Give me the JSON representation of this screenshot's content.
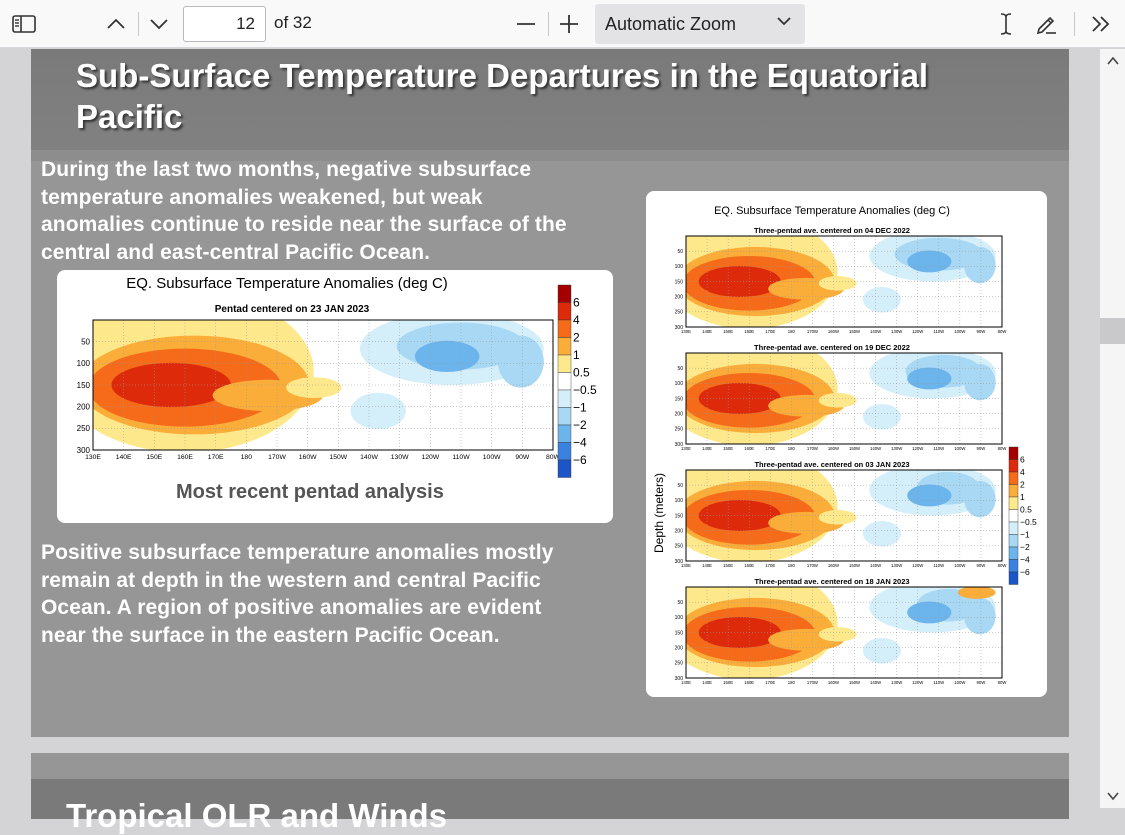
{
  "toolbar": {
    "page_number": "12",
    "page_count": "of 32",
    "zoom_value": "Automatic Zoom"
  },
  "slide": {
    "title": "Sub-Surface Temperature Departures in the Equatorial Pacific",
    "title_line1": "Sub-Surface Temperature Departures in the Equatorial",
    "title_line2": "Pacific",
    "para1": [
      "During the last two months, negative subsurface",
      "temperature anomalies weakened, but weak",
      "anomalies continue to reside near the surface of the",
      "central and east-central Pacific Ocean."
    ],
    "para2": [
      "Positive subsurface temperature anomalies mostly",
      "remain at depth in the western and central Pacific",
      "Ocean.  A region of positive anomalies are evident",
      "near the surface in the eastern Pacific Ocean."
    ],
    "caption": "Most recent pentad analysis"
  },
  "main_chart": {
    "title": "EQ. Subsurface Temperature Anomalies (deg C)",
    "subtitle": "Pentad centered on 23 JAN 2023",
    "y_ticks": [
      "50",
      "100",
      "150",
      "200",
      "250",
      "300"
    ],
    "x_ticks": [
      "130E",
      "140E",
      "150E",
      "160E",
      "170E",
      "180",
      "170W",
      "160W",
      "150W",
      "140W",
      "130W",
      "120W",
      "110W",
      "100W",
      "90W",
      "80W"
    ],
    "colorbar_labels": [
      "6",
      "4",
      "2",
      "1",
      "0.5",
      "−0.5",
      "−1",
      "−2",
      "−4",
      "−6"
    ]
  },
  "panel_chart": {
    "title": "EQ. Subsurface Temperature Anomalies (deg C)",
    "ylabel": "Depth (meters)",
    "panel_titles": [
      "Three-pentad ave. centered on 04 DEC 2022",
      "Three-pentad ave. centered on 19 DEC 2022",
      "Three-pentad ave. centered on 03 JAN 2023",
      "Three-pentad ave. centered on 18 JAN 2023"
    ],
    "y_ticks": [
      "50",
      "100",
      "150",
      "200",
      "250",
      "300"
    ],
    "x_ticks": [
      "130E",
      "140E",
      "150E",
      "160E",
      "170E",
      "180",
      "170W",
      "160W",
      "150W",
      "140W",
      "130W",
      "120W",
      "110W",
      "100W",
      "90W",
      "80W"
    ],
    "colorbar_labels": [
      "6",
      "4",
      "2",
      "1",
      "0.5",
      "−0.5",
      "−1",
      "−2",
      "−4",
      "−6"
    ]
  },
  "next_slide": {
    "title_partial": "Tropical OLR and Winds"
  },
  "colors": {
    "anom_pos6": "#a50000",
    "anom_pos4": "#dc2a0a",
    "anom_pos2": "#f56b1a",
    "anom_pos1": "#fbad3a",
    "anom_pos05": "#fde98c",
    "anom_zero": "#ffffff",
    "anom_neg05": "#d4effa",
    "anom_neg1": "#a8d8f4",
    "anom_neg2": "#6cb4ec",
    "anom_neg4": "#3b82e0",
    "anom_neg6": "#1c55c8"
  }
}
